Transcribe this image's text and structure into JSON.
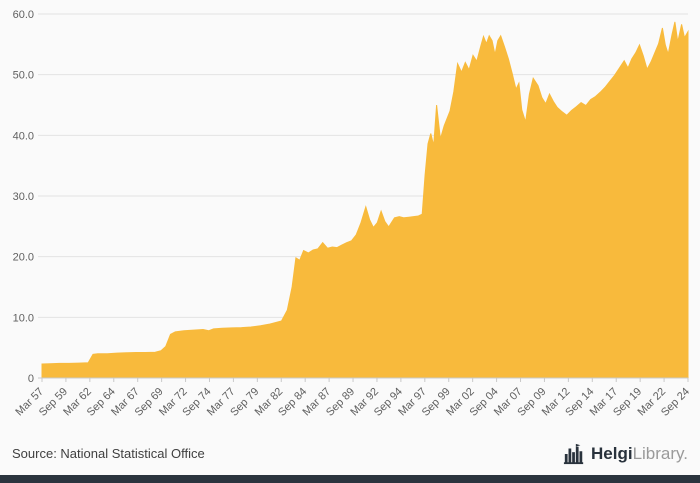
{
  "page": {
    "background": "#fafafa"
  },
  "footer": {
    "source": "Source: National Statistical Office"
  },
  "logo": {
    "name_bold": "Helgi",
    "name_light": "Library",
    "suffix": "."
  },
  "chart_data": {
    "type": "area",
    "title": "",
    "xlabel": "",
    "ylabel": "",
    "grid": "horizontal",
    "legend": "none",
    "series_color": "#F8BA3C",
    "axis_text_color": "#5f5f5f",
    "x_range": [
      1957.17,
      2024.67
    ],
    "ylim": [
      0,
      60
    ],
    "y_ticks": [
      {
        "label": "0",
        "v": 0
      },
      {
        "label": "10.0",
        "v": 10
      },
      {
        "label": "20.0",
        "v": 20
      },
      {
        "label": "30.0",
        "v": 30
      },
      {
        "label": "40.0",
        "v": 40
      },
      {
        "label": "50.0",
        "v": 50
      },
      {
        "label": "60.0",
        "v": 60
      }
    ],
    "x_ticks": [
      {
        "label": "Mar 57",
        "v": 1957.17
      },
      {
        "label": "Sep 59",
        "v": 1959.67
      },
      {
        "label": "Mar 62",
        "v": 1962.17
      },
      {
        "label": "Sep 64",
        "v": 1964.67
      },
      {
        "label": "Mar 67",
        "v": 1967.17
      },
      {
        "label": "Sep 69",
        "v": 1969.67
      },
      {
        "label": "Mar 72",
        "v": 1972.17
      },
      {
        "label": "Sep 74",
        "v": 1974.67
      },
      {
        "label": "Mar 77",
        "v": 1977.17
      },
      {
        "label": "Sep 79",
        "v": 1979.67
      },
      {
        "label": "Mar 82",
        "v": 1982.17
      },
      {
        "label": "Sep 84",
        "v": 1984.67
      },
      {
        "label": "Mar 87",
        "v": 1987.17
      },
      {
        "label": "Sep 89",
        "v": 1989.67
      },
      {
        "label": "Mar 92",
        "v": 1992.17
      },
      {
        "label": "Sep 94",
        "v": 1994.67
      },
      {
        "label": "Mar 97",
        "v": 1997.17
      },
      {
        "label": "Sep 99",
        "v": 1999.67
      },
      {
        "label": "Mar 02",
        "v": 2002.17
      },
      {
        "label": "Sep 04",
        "v": 2004.67
      },
      {
        "label": "Mar 07",
        "v": 2007.17
      },
      {
        "label": "Sep 09",
        "v": 2009.67
      },
      {
        "label": "Mar 12",
        "v": 2012.17
      },
      {
        "label": "Sep 14",
        "v": 2014.67
      },
      {
        "label": "Mar 17",
        "v": 2017.17
      },
      {
        "label": "Sep 19",
        "v": 2019.67
      },
      {
        "label": "Mar 22",
        "v": 2022.17
      },
      {
        "label": "Sep 24",
        "v": 2024.67
      }
    ],
    "points": [
      [
        1957.17,
        2.3
      ],
      [
        1958,
        2.35
      ],
      [
        1959,
        2.4
      ],
      [
        1960,
        2.4
      ],
      [
        1961,
        2.45
      ],
      [
        1962,
        2.5
      ],
      [
        1962.5,
        3.9
      ],
      [
        1963,
        4.0
      ],
      [
        1964,
        4.0
      ],
      [
        1965,
        4.1
      ],
      [
        1966,
        4.15
      ],
      [
        1967,
        4.2
      ],
      [
        1968,
        4.2
      ],
      [
        1969,
        4.25
      ],
      [
        1969.6,
        4.5
      ],
      [
        1970.1,
        5.2
      ],
      [
        1970.6,
        7.2
      ],
      [
        1971.1,
        7.6
      ],
      [
        1972,
        7.8
      ],
      [
        1973,
        7.9
      ],
      [
        1974,
        8.0
      ],
      [
        1974.6,
        7.8
      ],
      [
        1975.1,
        8.1
      ],
      [
        1976,
        8.2
      ],
      [
        1977,
        8.25
      ],
      [
        1978,
        8.3
      ],
      [
        1979,
        8.4
      ],
      [
        1980,
        8.6
      ],
      [
        1981,
        8.9
      ],
      [
        1982.2,
        9.4
      ],
      [
        1982.8,
        11.2
      ],
      [
        1983.3,
        15.0
      ],
      [
        1983.7,
        19.8
      ],
      [
        1984.1,
        19.4
      ],
      [
        1984.5,
        21.0
      ],
      [
        1985,
        20.6
      ],
      [
        1985.5,
        21.1
      ],
      [
        1986,
        21.3
      ],
      [
        1986.5,
        22.3
      ],
      [
        1987,
        21.4
      ],
      [
        1987.5,
        21.6
      ],
      [
        1988,
        21.5
      ],
      [
        1988.5,
        21.9
      ],
      [
        1989,
        22.3
      ],
      [
        1989.5,
        22.6
      ],
      [
        1990,
        23.6
      ],
      [
        1990.5,
        25.6
      ],
      [
        1991,
        28.2
      ],
      [
        1991.4,
        26.1
      ],
      [
        1991.8,
        24.8
      ],
      [
        1992.2,
        25.6
      ],
      [
        1992.6,
        27.5
      ],
      [
        1993,
        25.8
      ],
      [
        1993.4,
        24.9
      ],
      [
        1994,
        26.4
      ],
      [
        1994.5,
        26.6
      ],
      [
        1995,
        26.4
      ],
      [
        1995.5,
        26.5
      ],
      [
        1996,
        26.6
      ],
      [
        1996.5,
        26.7
      ],
      [
        1996.9,
        27.0
      ],
      [
        1997.2,
        33.5
      ],
      [
        1997.5,
        38.6
      ],
      [
        1997.8,
        40.3
      ],
      [
        1998.1,
        38.3
      ],
      [
        1998.4,
        45.0
      ],
      [
        1998.8,
        39.4
      ],
      [
        1999.2,
        41.6
      ],
      [
        1999.8,
        44.0
      ],
      [
        2000.2,
        47.2
      ],
      [
        2000.6,
        51.8
      ],
      [
        2001,
        50.4
      ],
      [
        2001.4,
        52.0
      ],
      [
        2001.8,
        50.8
      ],
      [
        2002.2,
        53.2
      ],
      [
        2002.6,
        52.2
      ],
      [
        2003,
        54.6
      ],
      [
        2003.3,
        56.3
      ],
      [
        2003.6,
        55.1
      ],
      [
        2003.9,
        56.4
      ],
      [
        2004.2,
        55.6
      ],
      [
        2004.5,
        53.3
      ],
      [
        2004.8,
        55.6
      ],
      [
        2005.1,
        56.4
      ],
      [
        2005.5,
        54.6
      ],
      [
        2005.9,
        52.6
      ],
      [
        2006.3,
        50.2
      ],
      [
        2006.7,
        47.6
      ],
      [
        2007,
        48.6
      ],
      [
        2007.3,
        44.2
      ],
      [
        2007.7,
        42.2
      ],
      [
        2008.1,
        46.8
      ],
      [
        2008.5,
        49.4
      ],
      [
        2009,
        48.2
      ],
      [
        2009.4,
        46.2
      ],
      [
        2009.8,
        45.2
      ],
      [
        2010.2,
        46.8
      ],
      [
        2010.6,
        45.6
      ],
      [
        2011,
        44.6
      ],
      [
        2011.5,
        43.9
      ],
      [
        2012,
        43.3
      ],
      [
        2012.5,
        44.1
      ],
      [
        2013,
        44.7
      ],
      [
        2013.5,
        45.4
      ],
      [
        2014,
        44.9
      ],
      [
        2014.5,
        45.9
      ],
      [
        2015,
        46.4
      ],
      [
        2015.5,
        47.1
      ],
      [
        2016,
        47.9
      ],
      [
        2016.5,
        48.9
      ],
      [
        2017,
        49.9
      ],
      [
        2017.5,
        51.1
      ],
      [
        2018,
        52.3
      ],
      [
        2018.4,
        51.1
      ],
      [
        2018.8,
        52.6
      ],
      [
        2019.2,
        53.6
      ],
      [
        2019.6,
        54.9
      ],
      [
        2020,
        53.1
      ],
      [
        2020.4,
        50.9
      ],
      [
        2020.8,
        52.1
      ],
      [
        2021.2,
        53.6
      ],
      [
        2021.6,
        55.1
      ],
      [
        2022,
        57.7
      ],
      [
        2022.3,
        54.9
      ],
      [
        2022.6,
        53.4
      ],
      [
        2023,
        56.6
      ],
      [
        2023.3,
        58.7
      ],
      [
        2023.6,
        55.4
      ],
      [
        2024,
        58.3
      ],
      [
        2024.3,
        56.1
      ],
      [
        2024.67,
        57.1
      ]
    ]
  }
}
